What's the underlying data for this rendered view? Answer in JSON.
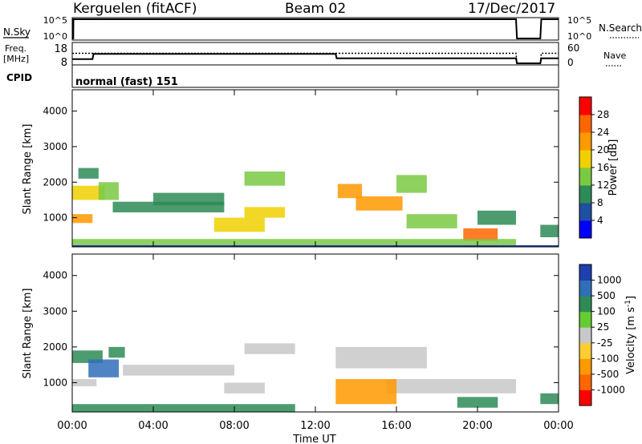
{
  "header": {
    "station": "Kerguelen (fitACF)",
    "beam": "Beam 02",
    "date": "17/Dec/2017"
  },
  "top_panels": {
    "nsky_label": "N.Sky",
    "nsky_ticks": [
      "10^5",
      "10^0"
    ],
    "nsearch_label": "N.Search",
    "nsearch_ticks": [
      "10^5",
      "10^0"
    ],
    "freq_label": "Freq.",
    "freq_unit": "[MHz]",
    "freq_ticks": [
      "18",
      "8"
    ],
    "nave_label": "Nave",
    "nave_ticks": [
      "60",
      "0"
    ],
    "cpid_label": "CPID",
    "cpid_text": "normal (fast) 151"
  },
  "x_axis": {
    "label": "Time UT",
    "ticks": [
      "00:00",
      "04:00",
      "08:00",
      "12:00",
      "16:00",
      "20:00",
      "00:00"
    ],
    "range_hours": [
      0,
      24
    ]
  },
  "range_axis": {
    "label": "Slant Range [km]",
    "ticks": [
      "1000",
      "2000",
      "3000",
      "4000"
    ],
    "range_km": [
      180,
      4600
    ]
  },
  "power_colorbar": {
    "label": "Power [dB]",
    "ticks": [
      "4",
      "8",
      "12",
      "16",
      "20",
      "24",
      "28"
    ],
    "colors": [
      "#0000ff",
      "#1f4fa0",
      "#2e8b57",
      "#7ac943",
      "#f0d000",
      "#ff9900",
      "#ff6600",
      "#ff0000"
    ]
  },
  "velocity_colorbar": {
    "label": "Velocity [m s",
    "label_sup": "-1",
    "label_end": "]",
    "ticks": [
      "1000",
      "500",
      "100",
      "25",
      "-25",
      "-100",
      "-500",
      "-1000"
    ],
    "colors": [
      "#1e3fae",
      "#2f6fb8",
      "#2e8b57",
      "#66cc33",
      "#c8c8c8",
      "#ffcc33",
      "#ff9900",
      "#ff6600",
      "#ff0000"
    ]
  },
  "chart_data": [
    {
      "type": "line",
      "title": "N.Sky / N.Search",
      "x": [
        0.0,
        0.05,
        0.06,
        21.9,
        21.95,
        23.1,
        23.15,
        24.0
      ],
      "series": [
        {
          "name": "N.Sky",
          "values": [
            0,
            0,
            5,
            5,
            0,
            0,
            5,
            5
          ]
        }
      ]
    },
    {
      "type": "line",
      "title": "Freq. / Nave",
      "x": [
        0.0,
        1.0,
        1.05,
        13.0,
        13.05,
        21.9,
        21.95,
        23.1,
        23.15,
        24.0
      ],
      "series": [
        {
          "name": "Freq.",
          "values": [
            10.4,
            10.4,
            13.3,
            13.3,
            10.8,
            10.8,
            8.0,
            8.0,
            10.8,
            10.8
          ]
        },
        {
          "name": "Nave",
          "values": [
            34,
            34,
            34,
            34,
            34,
            34,
            0,
            0,
            34,
            34
          ]
        }
      ]
    },
    {
      "type": "heatmap",
      "title": "Power [dB]",
      "xlabel": "Time UT",
      "ylabel": "Slant Range [km]",
      "xlim": [
        0,
        24
      ],
      "ylim": [
        180,
        4600
      ],
      "zlim": [
        0,
        32
      ],
      "data_gaps_hours": [
        [
          11.2,
          13.0
        ],
        [
          21.9,
          23.1
        ]
      ],
      "features": [
        {
          "time_start": 0.0,
          "time_end": 1.0,
          "range_km": [
            850,
            1100
          ],
          "value": 20
        },
        {
          "time_start": 0.0,
          "time_end": 1.6,
          "range_km": [
            1500,
            1900
          ],
          "value": 16
        },
        {
          "time_start": 0.3,
          "time_end": 1.3,
          "range_km": [
            2100,
            2400
          ],
          "value": 8
        },
        {
          "time_start": 1.3,
          "time_end": 2.3,
          "range_km": [
            1500,
            2000
          ],
          "value": 12
        },
        {
          "time_start": 2.0,
          "time_end": 7.5,
          "range_km": [
            1150,
            1450
          ],
          "value": 8
        },
        {
          "time_start": 4.0,
          "time_end": 7.5,
          "range_km": [
            1350,
            1700
          ],
          "value": 8
        },
        {
          "time_start": 7.0,
          "time_end": 9.5,
          "range_km": [
            600,
            1000
          ],
          "value": 18
        },
        {
          "time_start": 8.5,
          "time_end": 10.5,
          "range_km": [
            1000,
            1300
          ],
          "value": 16
        },
        {
          "time_start": 8.5,
          "time_end": 10.5,
          "range_km": [
            1900,
            2300
          ],
          "value": 12
        },
        {
          "time_start": 13.1,
          "time_end": 14.3,
          "range_km": [
            1550,
            1950
          ],
          "value": 20
        },
        {
          "time_start": 14.0,
          "time_end": 16.3,
          "range_km": [
            1200,
            1600
          ],
          "value": 22
        },
        {
          "time_start": 16.0,
          "time_end": 17.5,
          "range_km": [
            1700,
            2200
          ],
          "value": 12
        },
        {
          "time_start": 16.5,
          "time_end": 19.0,
          "range_km": [
            700,
            1100
          ],
          "value": 12
        },
        {
          "time_start": 19.3,
          "time_end": 21.0,
          "range_km": [
            350,
            700
          ],
          "value": 26
        },
        {
          "time_start": 20.0,
          "time_end": 21.9,
          "range_km": [
            800,
            1200
          ],
          "value": 8
        },
        {
          "time_start": 23.1,
          "time_end": 24.0,
          "range_km": [
            450,
            800
          ],
          "value": 8
        },
        {
          "time_start": 0.0,
          "time_end": 21.9,
          "range_km": [
            180,
            400
          ],
          "value": 12
        }
      ]
    },
    {
      "type": "heatmap",
      "title": "Velocity",
      "xlabel": "Time UT",
      "ylabel": "Slant Range [km]",
      "xlim": [
        0,
        24
      ],
      "ylim": [
        180,
        4600
      ],
      "zlim": [
        -1000,
        1000
      ],
      "data_gaps_hours": [
        [
          11.2,
          13.0
        ],
        [
          21.9,
          23.1
        ]
      ],
      "features": [
        {
          "time_start": 0.0,
          "time_end": 1.5,
          "range_km": [
            1550,
            1900
          ],
          "value": 120
        },
        {
          "time_start": 0.8,
          "time_end": 2.3,
          "range_km": [
            1150,
            1650
          ],
          "value": 500
        },
        {
          "time_start": 1.8,
          "time_end": 2.6,
          "range_km": [
            1700,
            2000
          ],
          "value": 100
        },
        {
          "time_start": 0.0,
          "time_end": 1.2,
          "range_km": [
            900,
            1100
          ],
          "value": 0
        },
        {
          "time_start": 2.5,
          "time_end": 8.0,
          "range_km": [
            1200,
            1500
          ],
          "value": 0
        },
        {
          "time_start": 7.5,
          "time_end": 9.5,
          "range_km": [
            700,
            1000
          ],
          "value": 0
        },
        {
          "time_start": 8.5,
          "time_end": 11.0,
          "range_km": [
            1800,
            2100
          ],
          "value": 0
        },
        {
          "time_start": 13.0,
          "time_end": 17.5,
          "range_km": [
            1400,
            2000
          ],
          "value": 0
        },
        {
          "time_start": 15.5,
          "time_end": 21.9,
          "range_km": [
            700,
            1100
          ],
          "value": 0
        },
        {
          "time_start": 13.0,
          "time_end": 16.0,
          "range_km": [
            400,
            1100
          ],
          "value": -300
        },
        {
          "time_start": 19.0,
          "time_end": 21.0,
          "range_km": [
            300,
            600
          ],
          "value": 100
        },
        {
          "time_start": 23.1,
          "time_end": 24.0,
          "range_km": [
            400,
            700
          ],
          "value": 100
        },
        {
          "time_start": 0.0,
          "time_end": 11.0,
          "range_km": [
            180,
            400
          ],
          "value": 100
        }
      ]
    }
  ]
}
